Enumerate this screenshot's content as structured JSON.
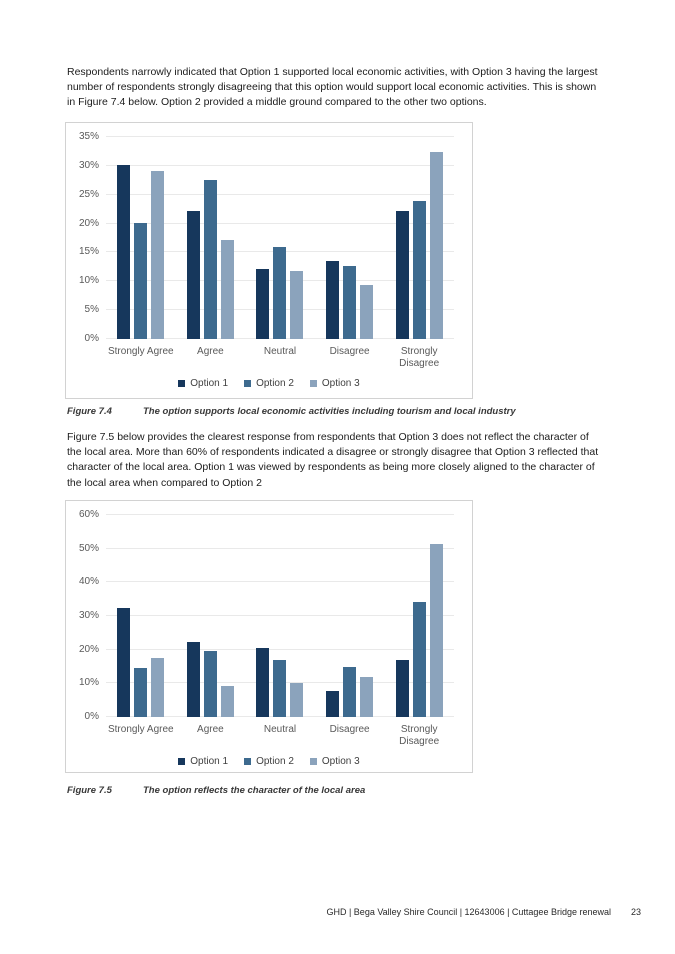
{
  "document": {
    "paragraph_1_lines": [
      "Respondents narrowly indicated that Option 1 supported local economic activities, with Option 3 having the largest",
      "number of respondents strongly disagreeing that this option would support local economic activities. This is shown",
      "in Figure 7.4 below. Option 2 provided a middle ground compared to the other two options."
    ],
    "paragraph_2_lines": [
      "Figure 7.5 below provides the clearest response from respondents that Option 3 does not reflect the character of",
      "the local area. More than 60% of respondents indicated a disagree or strongly disagree that Option 3 reflected that",
      "character of the local area. Option 1 was viewed by respondents as being more closely aligned to the character of",
      "the local area when compared to Option 2"
    ],
    "figures": {
      "fig_7_4": {
        "label": "Figure 7.4",
        "caption": "The option supports local economic activities including tourism and local industry"
      },
      "fig_7_5": {
        "label": "Figure 7.5",
        "caption": "The option reflects the character of the local area"
      }
    },
    "footer": {
      "text": "GHD | Bega Valley Shire Council | 12643006 | Cuttagee Bridge renewal",
      "page_number": "23"
    }
  },
  "colors": {
    "option_1": "#16375C",
    "option_2": "#3D6A8E",
    "option_3": "#8BA3BC",
    "gridline": "#e9e9e9",
    "panel_border": "#d2d2d2",
    "axis_text": "#595959"
  },
  "chart_data": [
    {
      "type": "bar",
      "title": "The option supports local economic activities including tourism and local industry",
      "categories": [
        "Strongly Agree",
        "Agree",
        "Neutral",
        "Disagree",
        "Strongly Disagree"
      ],
      "series": [
        {
          "name": "Option 1",
          "color": "#16375C",
          "values": [
            30.1,
            22.2,
            12.1,
            13.5,
            22.2
          ]
        },
        {
          "name": "Option 2",
          "color": "#3D6A8E",
          "values": [
            20.1,
            27.5,
            15.9,
            12.6,
            23.9
          ]
        },
        {
          "name": "Option 3",
          "color": "#8BA3BC",
          "values": [
            29.1,
            17.2,
            11.8,
            9.4,
            32.4
          ]
        }
      ],
      "ylim": [
        0,
        35
      ],
      "yticks": [
        0,
        5,
        10,
        15,
        20,
        25,
        30,
        35
      ],
      "ytick_labels": [
        "0%",
        "5%",
        "10%",
        "15%",
        "20%",
        "25%",
        "30%",
        "35%"
      ],
      "grid": true,
      "legend_position": "bottom"
    },
    {
      "type": "bar",
      "title": "The option reflects the character of the local area",
      "categories": [
        "Strongly Agree",
        "Agree",
        "Neutral",
        "Disagree",
        "Strongly Disagree"
      ],
      "series": [
        {
          "name": "Option 1",
          "color": "#16375C",
          "values": [
            32.5,
            22.2,
            20.6,
            7.8,
            16.9
          ]
        },
        {
          "name": "Option 2",
          "color": "#3D6A8E",
          "values": [
            14.6,
            19.6,
            17.0,
            14.8,
            34.1
          ]
        },
        {
          "name": "Option 3",
          "color": "#8BA3BC",
          "values": [
            17.4,
            9.1,
            10.2,
            12.0,
            51.4
          ]
        }
      ],
      "ylim": [
        0,
        60
      ],
      "yticks": [
        0,
        10,
        20,
        30,
        40,
        50,
        60
      ],
      "ytick_labels": [
        "0%",
        "10%",
        "20%",
        "30%",
        "40%",
        "50%",
        "60%"
      ],
      "grid": true,
      "legend_position": "bottom"
    }
  ]
}
